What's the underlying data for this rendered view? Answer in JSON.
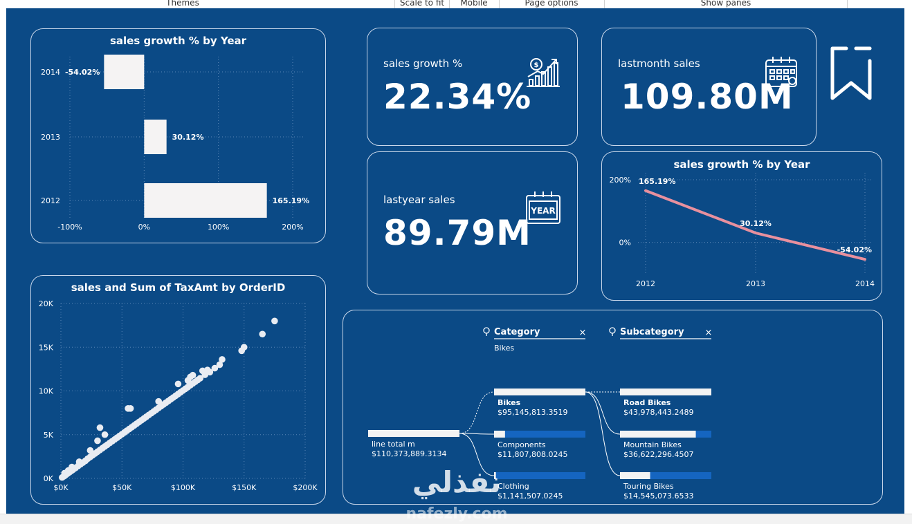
{
  "toolbar": {
    "items": [
      "Themes",
      "Scale to fit",
      "Mobile",
      "Page options",
      "Show panes"
    ]
  },
  "colors": {
    "canvas": "#0b4a86",
    "card_border": "#c9d7ea",
    "bar": "#f5f3f3",
    "line": "#e8909e",
    "decomp_accent": "#1565c0"
  },
  "bar_chart": {
    "title": "sales growth % by Year",
    "chart_data": {
      "type": "bar",
      "orientation": "horizontal",
      "categories": [
        "2014",
        "2013",
        "2012"
      ],
      "values": [
        -54.02,
        30.12,
        165.19
      ],
      "labels": [
        "-54.02%",
        "30.12%",
        "165.19%"
      ],
      "x_ticks": [
        "-100%",
        "0%",
        "100%",
        "200%"
      ],
      "xlim": [
        -100,
        200
      ],
      "grid": true
    }
  },
  "kpi_growth": {
    "label": "sales growth %",
    "value": "22.34%",
    "icon": "growth-chart-icon"
  },
  "kpi_lastmonth": {
    "label": "lastmonth sales",
    "value": "109.80M",
    "icon": "calendar-icon"
  },
  "kpi_lastyear": {
    "label": "lastyear sales",
    "value": "89.79M",
    "icon": "year-calendar-icon",
    "icon_text": "YEAR"
  },
  "line_chart": {
    "title": "sales growth % by Year",
    "chart_data": {
      "type": "line",
      "x": [
        "2012",
        "2013",
        "2014"
      ],
      "values": [
        165.19,
        30.12,
        -54.02
      ],
      "labels": [
        "165.19%",
        "30.12%",
        "-54.02%"
      ],
      "y_ticks": [
        "200%",
        "0%"
      ],
      "ylim": [
        -100,
        200
      ],
      "grid": true
    }
  },
  "scatter_chart": {
    "title": "sales and Sum of TaxAmt by OrderID",
    "chart_data": {
      "type": "scatter",
      "x_ticks": [
        "$0K",
        "$50K",
        "$100K",
        "$150K",
        "$200K"
      ],
      "y_ticks": [
        "0K",
        "5K",
        "10K",
        "15K",
        "20K"
      ],
      "xlim": [
        0,
        200000
      ],
      "ylim": [
        0,
        20000
      ],
      "grid": true,
      "points": [
        [
          1000,
          100
        ],
        [
          2500,
          250
        ],
        [
          4000,
          400
        ],
        [
          5500,
          550
        ],
        [
          7000,
          700
        ],
        [
          8500,
          850
        ],
        [
          10000,
          1000
        ],
        [
          12000,
          1200
        ],
        [
          14000,
          1400
        ],
        [
          16000,
          1600
        ],
        [
          18000,
          1800
        ],
        [
          20000,
          2000
        ],
        [
          22000,
          2250
        ],
        [
          24000,
          2450
        ],
        [
          26000,
          2650
        ],
        [
          28000,
          2850
        ],
        [
          30000,
          3050
        ],
        [
          32000,
          3250
        ],
        [
          34000,
          3450
        ],
        [
          36000,
          3650
        ],
        [
          38000,
          3850
        ],
        [
          40000,
          4050
        ],
        [
          42000,
          4250
        ],
        [
          44000,
          4450
        ],
        [
          46000,
          4650
        ],
        [
          48000,
          4850
        ],
        [
          50000,
          5050
        ],
        [
          52000,
          5250
        ],
        [
          54000,
          5450
        ],
        [
          56000,
          5650
        ],
        [
          58000,
          5850
        ],
        [
          60000,
          6050
        ],
        [
          62000,
          6250
        ],
        [
          64000,
          6450
        ],
        [
          66000,
          6650
        ],
        [
          68000,
          6850
        ],
        [
          70000,
          7050
        ],
        [
          72000,
          7250
        ],
        [
          74000,
          7450
        ],
        [
          76000,
          7650
        ],
        [
          78000,
          7850
        ],
        [
          80000,
          8050
        ],
        [
          82000,
          8250
        ],
        [
          84000,
          8450
        ],
        [
          86000,
          8650
        ],
        [
          88000,
          8850
        ],
        [
          90000,
          9050
        ],
        [
          92000,
          9250
        ],
        [
          94000,
          9450
        ],
        [
          96000,
          9650
        ],
        [
          98000,
          9850
        ],
        [
          100000,
          10050
        ],
        [
          102000,
          10250
        ],
        [
          104000,
          10450
        ],
        [
          106000,
          10650
        ],
        [
          108000,
          10850
        ],
        [
          110000,
          11050
        ],
        [
          112000,
          11250
        ],
        [
          114000,
          11450
        ],
        [
          118000,
          11850
        ],
        [
          122000,
          12150
        ],
        [
          126000,
          12600
        ],
        [
          130000,
          13000
        ],
        [
          132000,
          13600
        ],
        [
          148000,
          14600
        ],
        [
          150000,
          15000
        ],
        [
          165000,
          16500
        ],
        [
          175000,
          18000
        ],
        [
          3000,
          600
        ],
        [
          6000,
          900
        ],
        [
          9000,
          1300
        ],
        [
          15000,
          1900
        ],
        [
          24000,
          3200
        ],
        [
          30000,
          4300
        ],
        [
          32000,
          5800
        ],
        [
          36000,
          5000
        ],
        [
          55000,
          8000
        ],
        [
          57000,
          8000
        ],
        [
          80000,
          8800
        ],
        [
          96000,
          10800
        ],
        [
          104000,
          11200
        ],
        [
          106000,
          11600
        ],
        [
          108000,
          11800
        ],
        [
          116000,
          12300
        ],
        [
          120000,
          12400
        ]
      ]
    }
  },
  "decomp_tree": {
    "headers": [
      {
        "title": "Category",
        "selected": "Bikes"
      },
      {
        "title": "Subcategory",
        "selected": ""
      }
    ],
    "root": {
      "name": "line total m",
      "value": "$110,373,889.3134",
      "fill": 1.0
    },
    "level1": [
      {
        "name": "Bikes",
        "value": "$95,145,813.3519",
        "fill": 1.0,
        "bold": true
      },
      {
        "name": "Components",
        "value": "$11,807,808.0245",
        "fill": 0.12,
        "bold": false
      },
      {
        "name": "Clothing",
        "value": "$1,141,507.0245",
        "fill": 0.02,
        "bold": false
      }
    ],
    "level2": [
      {
        "name": "Road Bikes",
        "value": "$43,978,443.2489",
        "fill": 1.0,
        "bold": true
      },
      {
        "name": "Mountain Bikes",
        "value": "$36,622,296.4507",
        "fill": 0.83,
        "bold": false
      },
      {
        "name": "Touring Bikes",
        "value": "$14,545,073.6533",
        "fill": 0.33,
        "bold": false
      }
    ]
  },
  "watermark": {
    "text_arabic": "نفذلي",
    "text_latin": "nafezly.com"
  }
}
